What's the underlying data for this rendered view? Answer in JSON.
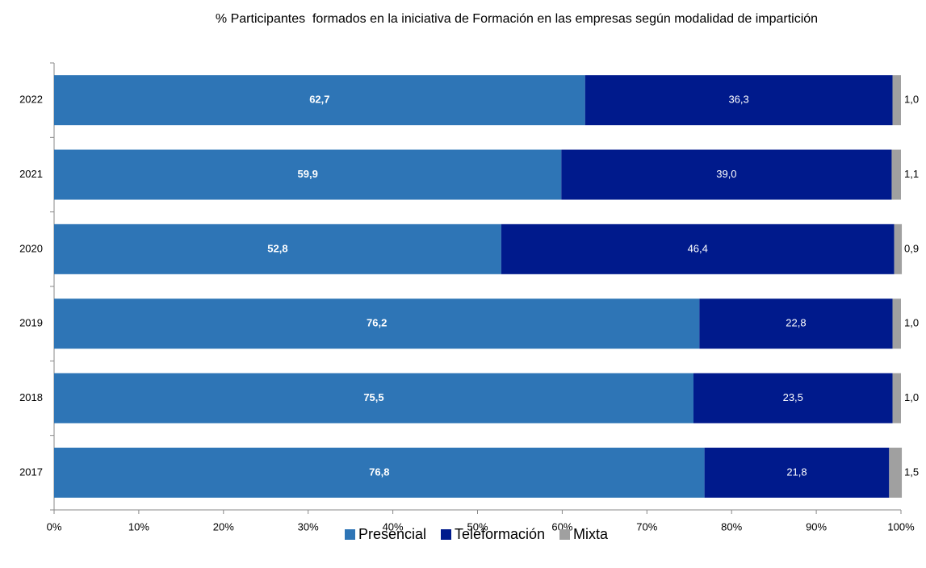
{
  "chart_data": {
    "type": "stacked_bar_horizontal",
    "title": "% Participantes  formados en la iniciativa de Formación en las empresas según modalidad de impartición",
    "categories": [
      "2022",
      "2021",
      "2020",
      "2019",
      "2018",
      "2017"
    ],
    "series": [
      {
        "name": "Presencial",
        "color": "#2e75b6",
        "values": [
          62.7,
          59.9,
          52.8,
          76.2,
          75.5,
          76.8
        ],
        "value_labels": [
          "62,7",
          "59,9",
          "52,8",
          "76,2",
          "75,5",
          "76,8"
        ]
      },
      {
        "name": "Teleformación",
        "color": "#001a8c",
        "values": [
          36.3,
          39.0,
          46.4,
          22.8,
          23.5,
          21.8
        ],
        "value_labels": [
          "36,3",
          "39,0",
          "46,4",
          "22,8",
          "23,5",
          "21,8"
        ]
      },
      {
        "name": "Mixta",
        "color": "#a0a0a0",
        "values": [
          1.0,
          1.1,
          0.9,
          1.0,
          1.0,
          1.5
        ],
        "value_labels": [
          "1,0",
          "1,1",
          "0,9",
          "1,0",
          "1,0",
          "1,5"
        ]
      }
    ],
    "xlim": [
      0,
      100
    ],
    "xticks": [
      {
        "value": 0,
        "label": "0%"
      },
      {
        "value": 10,
        "label": "10%"
      },
      {
        "value": 20,
        "label": "20%"
      },
      {
        "value": 30,
        "label": "30%"
      },
      {
        "value": 40,
        "label": "40%"
      },
      {
        "value": 50,
        "label": "50%"
      },
      {
        "value": 60,
        "label": "60%"
      },
      {
        "value": 70,
        "label": "70%"
      },
      {
        "value": 80,
        "label": "80%"
      },
      {
        "value": 90,
        "label": "90%"
      },
      {
        "value": 100,
        "label": "100%"
      }
    ],
    "legend": "bottom"
  }
}
